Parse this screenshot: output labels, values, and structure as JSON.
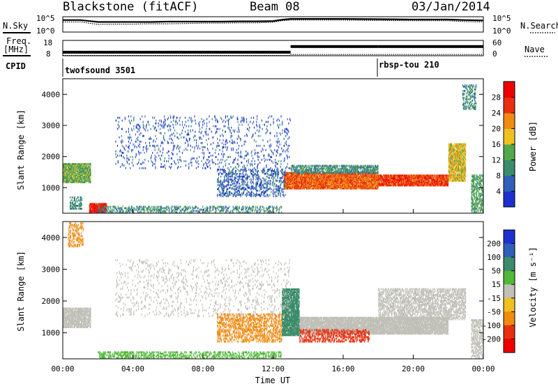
{
  "chart_data": [
    {
      "type": "line",
      "panel": "noise",
      "title": "Blackstone (fitACF)",
      "subtitle_center": "Beam 08",
      "subtitle_right": "03/Jan/2014",
      "left_label": "N.Sky",
      "left_ticks": [
        "10^5",
        "10^0"
      ],
      "right_label": "N.Search",
      "right_ticks": [
        "10^5",
        "10^0"
      ],
      "x_hours": [
        0,
        1,
        2,
        3,
        4,
        5,
        6,
        7,
        8,
        9,
        10,
        11,
        12,
        12.5,
        13,
        13.5,
        14,
        16,
        18,
        20,
        22,
        23,
        24
      ],
      "sky_log": [
        3.9,
        3.9,
        3.3,
        3.3,
        3.3,
        3.3,
        3.4,
        3.4,
        3.4,
        3.4,
        3.5,
        3.5,
        3.6,
        4.0,
        4.3,
        4.3,
        4.3,
        4.3,
        4.2,
        4.1,
        4.1,
        3.9,
        3.8
      ],
      "search_log": [
        3.3,
        3.3,
        2.5,
        2.6,
        2.6,
        2.7,
        2.7,
        2.8,
        2.9,
        2.9,
        3.0,
        3.0,
        3.2,
        3.7,
        3.9,
        3.9,
        3.9,
        3.9,
        3.8,
        3.7,
        3.7,
        3.4,
        3.3
      ]
    },
    {
      "type": "line",
      "panel": "frequency",
      "left_label_1": "Freq.",
      "left_label_2": "[MHz]",
      "left_ticks": [
        "18",
        "8"
      ],
      "right_label": "Nave",
      "right_ticks": [
        "60",
        "0"
      ],
      "cpid_label": "CPID",
      "freq_segments": [
        {
          "x0": 0.0,
          "x1": 13.0,
          "y": 10.3
        },
        {
          "x0": 13.0,
          "x1": 18.0,
          "y": 14.0
        },
        {
          "x0": 18.0,
          "x1": 24.0,
          "y": 14.0
        }
      ],
      "nave_segments": [
        {
          "x0": 0.0,
          "x1": 13.0,
          "y": 1.0
        },
        {
          "x0": 13.0,
          "x1": 24.0,
          "y": 5.0
        }
      ],
      "cpid": [
        {
          "name": "twofsound 3501",
          "start": 0.0
        },
        {
          "name": "rbsp-tou 210",
          "start": 18.1
        }
      ]
    },
    {
      "type": "heatmap",
      "panel": "power",
      "ylabel": "Slant Range [km]",
      "yticks": [
        1000,
        2000,
        3000,
        4000
      ],
      "ylim": [
        180,
        4500
      ],
      "xlim": [
        0,
        24
      ],
      "colorbar_label": "Power [dB]",
      "colorbar_ticks": [
        4,
        8,
        12,
        16,
        20,
        24,
        28
      ],
      "colorbar_range": [
        0,
        32
      ],
      "colors": [
        "#1e2fd0",
        "#2f5fb8",
        "#3b8c6a",
        "#52a84a",
        "#f0c020",
        "#f08a10",
        "#e83010",
        "#ee0000"
      ],
      "features": [
        {
          "x0": 0.0,
          "x1": 1.6,
          "r0": 1150,
          "r1": 1800,
          "value": 14,
          "density": 0.85
        },
        {
          "x0": 1.5,
          "x1": 2.5,
          "r0": 180,
          "r1": 500,
          "value": 28,
          "density": 0.9
        },
        {
          "x0": 0.4,
          "x1": 1.1,
          "r0": 300,
          "r1": 700,
          "value": 10,
          "density": 0.5
        },
        {
          "x0": 12.6,
          "x1": 18.0,
          "r0": 950,
          "r1": 1500,
          "value": 24,
          "density": 0.9
        },
        {
          "x0": 18.0,
          "x1": 22.0,
          "r0": 1050,
          "r1": 1400,
          "value": 26,
          "density": 0.9
        },
        {
          "x0": 13.0,
          "x1": 18.0,
          "r0": 1450,
          "r1": 1700,
          "value": 10,
          "density": 0.6
        },
        {
          "x0": 22.0,
          "x1": 23.0,
          "r0": 1200,
          "r1": 2400,
          "value": 18,
          "density": 0.8
        },
        {
          "x0": 8.8,
          "x1": 12.7,
          "r0": 700,
          "r1": 1600,
          "value": 6,
          "density": 0.3
        },
        {
          "x0": 2.0,
          "x1": 12.5,
          "r0": 180,
          "r1": 400,
          "value": 10,
          "density": 0.35
        },
        {
          "x0": 3.0,
          "x1": 13.0,
          "r0": 1600,
          "r1": 3300,
          "value": 5,
          "density": 0.08
        },
        {
          "x0": 23.3,
          "x1": 24.0,
          "r0": 200,
          "r1": 1400,
          "value": 12,
          "density": 0.5
        },
        {
          "x0": 22.8,
          "x1": 23.6,
          "r0": 3500,
          "r1": 4300,
          "value": 10,
          "density": 0.4
        }
      ]
    },
    {
      "type": "heatmap",
      "panel": "velocity",
      "ylabel": "Slant Range [km]",
      "yticks": [
        1000,
        2000,
        3000,
        4000
      ],
      "ylim": [
        180,
        4500
      ],
      "xlim": [
        0,
        24
      ],
      "xlabel": "Time UT",
      "xticks": [
        "00:00",
        "04:00",
        "08:00",
        "12:00",
        "16:00",
        "20:00",
        "00:00"
      ],
      "colorbar_label": "Velocity [m s⁻¹]",
      "colorbar_ticks": [
        "200",
        "100",
        "50",
        "15",
        "-15",
        "-50",
        "-100",
        "-200"
      ],
      "colors": [
        "#1e2fd0",
        "#2f5fb8",
        "#3b8c6a",
        "#52b83a",
        "#c0c0b8",
        "#f0c020",
        "#f08a10",
        "#e83010",
        "#ee0000"
      ],
      "features": [
        {
          "x0": 0.0,
          "x1": 1.6,
          "r0": 1150,
          "r1": 1800,
          "value": 0,
          "density": 0.8
        },
        {
          "x0": 13.0,
          "x1": 22.0,
          "r0": 950,
          "r1": 1500,
          "value": 0,
          "density": 0.9
        },
        {
          "x0": 12.5,
          "x1": 13.5,
          "r0": 900,
          "r1": 2400,
          "value": 60,
          "density": 0.8
        },
        {
          "x0": 18.0,
          "x1": 23.0,
          "r0": 1400,
          "r1": 2400,
          "value": 0,
          "density": 0.5
        },
        {
          "x0": 8.8,
          "x1": 12.5,
          "r0": 700,
          "r1": 1600,
          "value": -60,
          "density": 0.4
        },
        {
          "x0": 13.5,
          "x1": 17.5,
          "r0": 700,
          "r1": 1100,
          "value": -120,
          "density": 0.4
        },
        {
          "x0": 2.0,
          "x1": 12.5,
          "r0": 180,
          "r1": 420,
          "value": 40,
          "density": 0.4
        },
        {
          "x0": 0.3,
          "x1": 1.2,
          "r0": 3700,
          "r1": 4500,
          "value": -80,
          "density": 0.3
        },
        {
          "x0": 3.0,
          "x1": 13.0,
          "r0": 1500,
          "r1": 3300,
          "value": 0,
          "density": 0.08
        },
        {
          "x0": 23.3,
          "x1": 24.0,
          "r0": 200,
          "r1": 1400,
          "value": 0,
          "density": 0.5
        }
      ]
    }
  ]
}
